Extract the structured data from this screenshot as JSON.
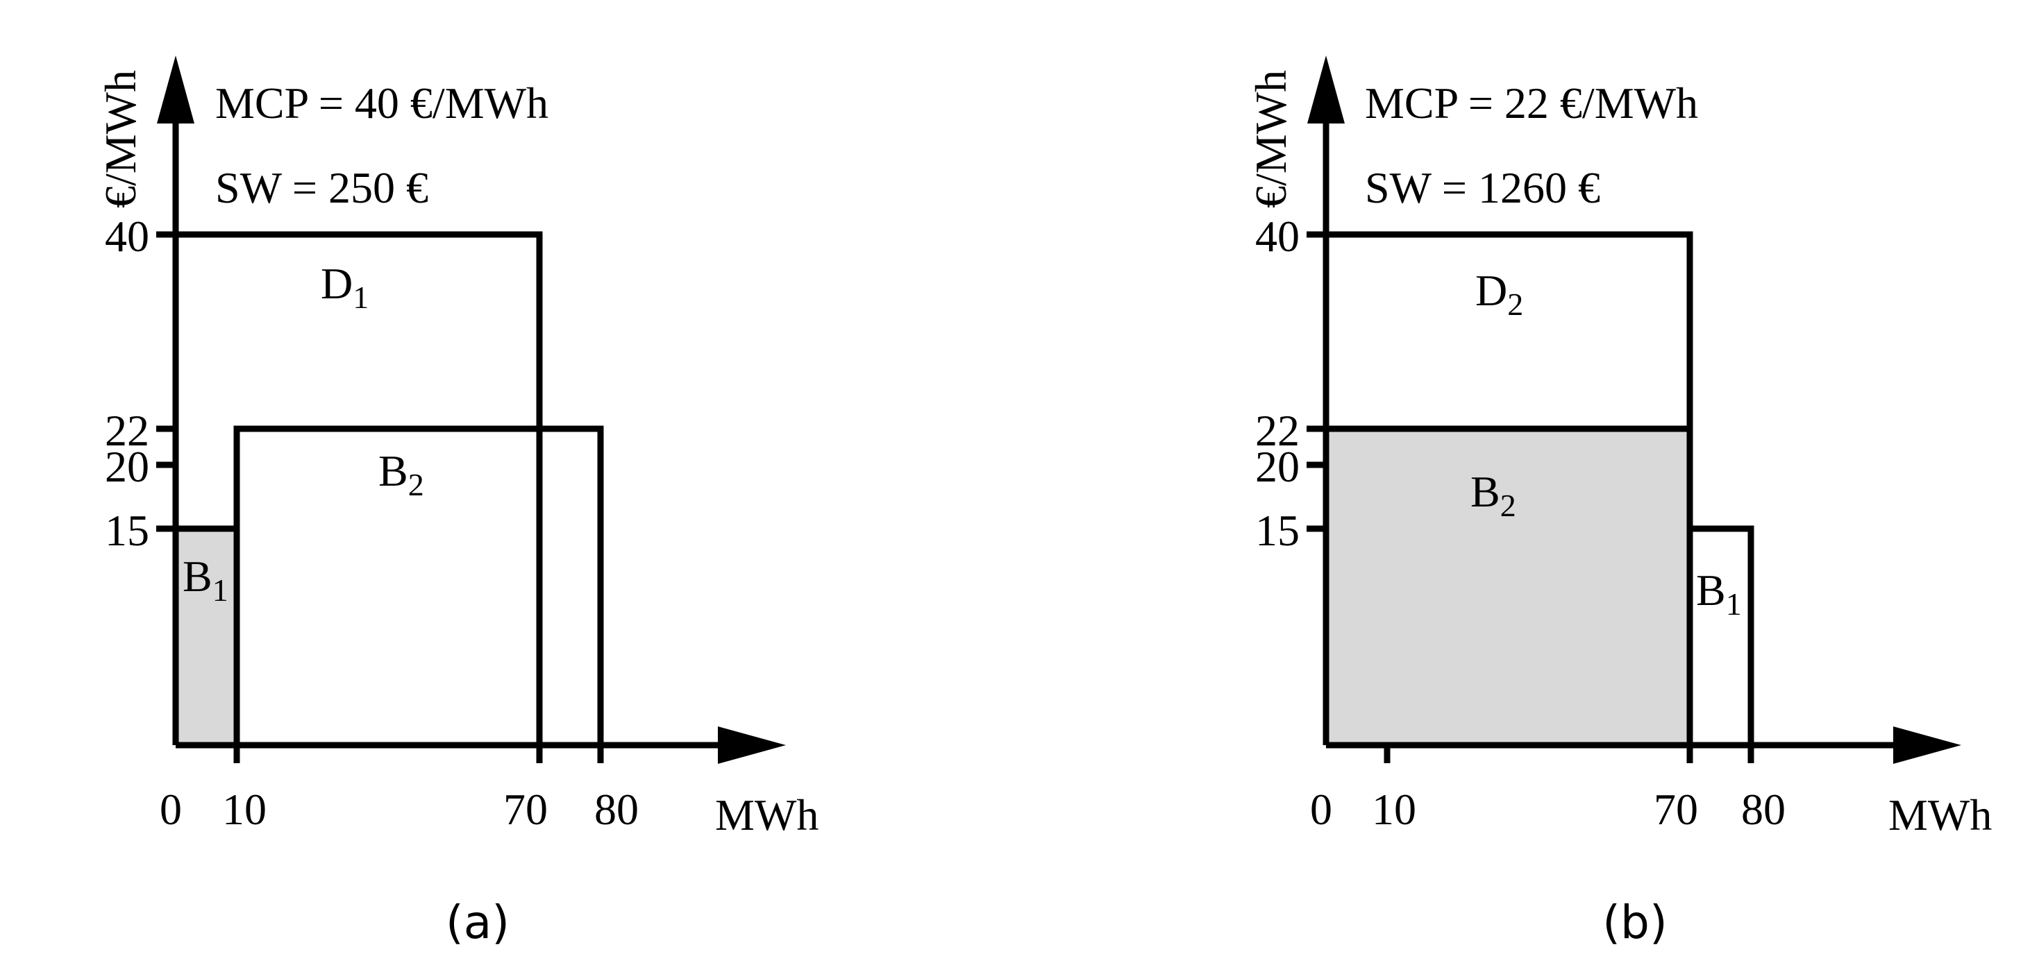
{
  "panels": [
    {
      "id": "a",
      "caption": "(a)",
      "mcp_label": "MCP = 40 €/MWh",
      "sw_label": "SW = 250 €",
      "y_axis_label": "€/MWh",
      "x_axis_label": "MWh",
      "x_ticks": [
        "0",
        "10",
        "70",
        "80"
      ],
      "y_ticks": [
        "15",
        "20",
        "22",
        "40"
      ],
      "blocks": [
        {
          "label_main": "D",
          "label_sub": "1",
          "x0": 0,
          "x1": 70,
          "y": 40,
          "shaded": false
        },
        {
          "label_main": "B",
          "label_sub": "2",
          "x0": 10,
          "x1": 80,
          "y": 22,
          "shaded": false
        },
        {
          "label_main": "B",
          "label_sub": "1",
          "x0": 0,
          "x1": 10,
          "y": 15,
          "shaded": true
        }
      ],
      "dashed_at_x": 70
    },
    {
      "id": "b",
      "caption": "(b)",
      "mcp_label": "MCP = 22 €/MWh",
      "sw_label": "SW = 1260 €",
      "y_axis_label": "€/MWh",
      "x_axis_label": "MWh",
      "x_ticks": [
        "0",
        "10",
        "70",
        "80"
      ],
      "y_ticks": [
        "15",
        "20",
        "22",
        "40"
      ],
      "blocks": [
        {
          "label_main": "D",
          "label_sub": "2",
          "x0": 0,
          "x1": 70,
          "y": 40,
          "shaded": false
        },
        {
          "label_main": "B",
          "label_sub": "2",
          "x0": 0,
          "x1": 70,
          "y": 22,
          "shaded": true
        },
        {
          "label_main": "B",
          "label_sub": "1",
          "x0": 70,
          "x1": 80,
          "y": 15,
          "shaded": false
        }
      ]
    }
  ]
}
